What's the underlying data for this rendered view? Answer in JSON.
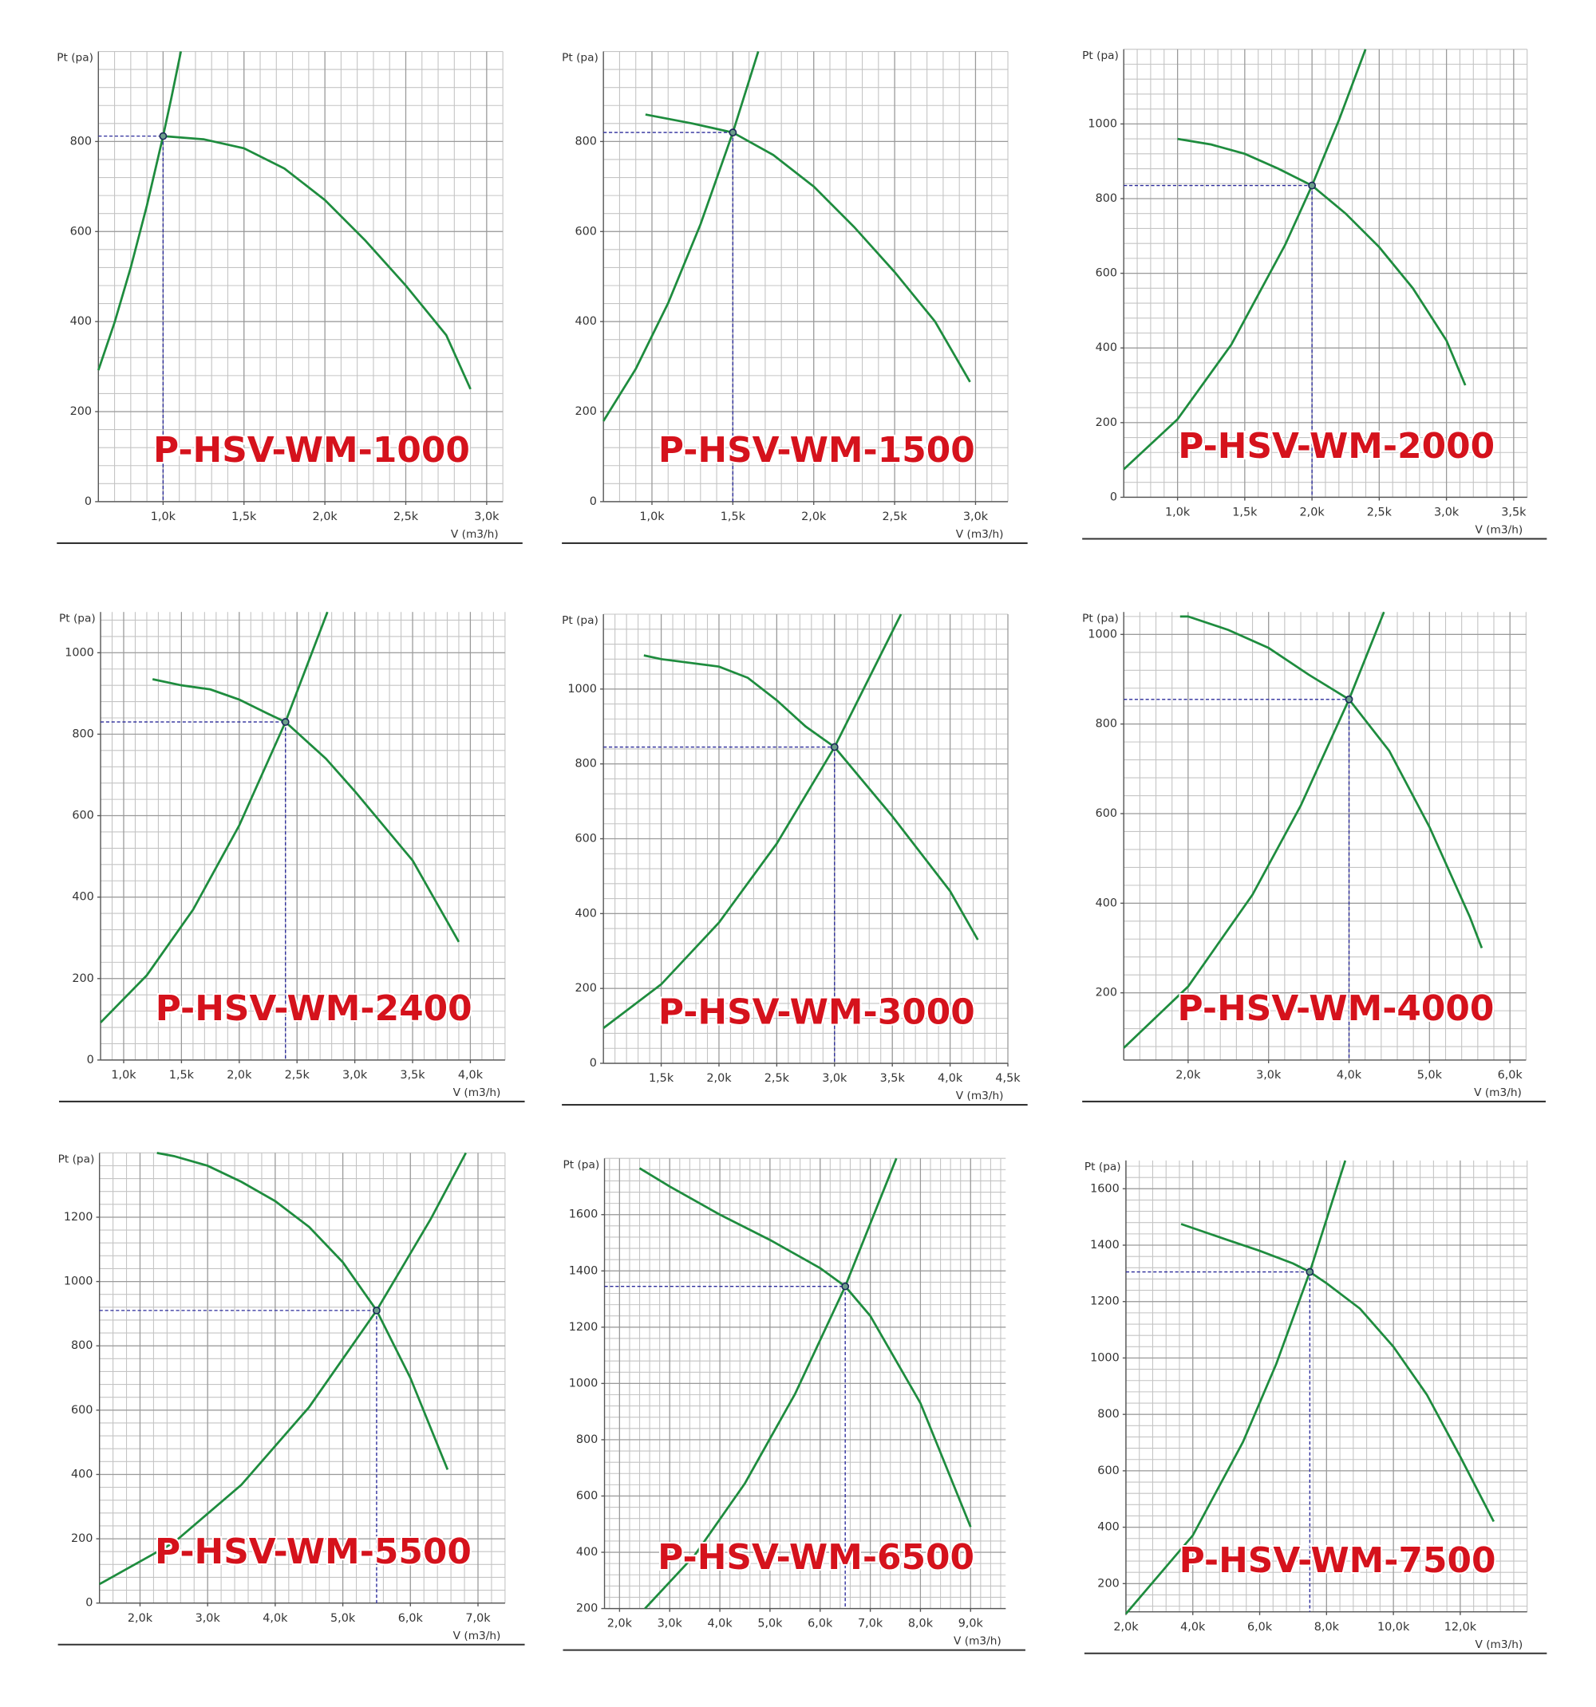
{
  "chart_data": [
    {
      "type": "line",
      "title": "P-HSV-WM-1000",
      "ylabel": "Pt (pa)",
      "xlabel": "V (m3/h)",
      "grid": true,
      "xlim": [
        600,
        3100
      ],
      "ylim": [
        0,
        1000
      ],
      "xticks": [
        {
          "value": 1000,
          "label": "1,0k"
        },
        {
          "value": 1500,
          "label": "1,5k"
        },
        {
          "value": 2000,
          "label": "2,0k"
        },
        {
          "value": 2500,
          "label": "2,5k"
        },
        {
          "value": 3000,
          "label": "3,0k"
        }
      ],
      "yticks": [
        0,
        200,
        400,
        600,
        800
      ],
      "series": [
        {
          "color": "#1e8c3e",
          "x": [
            1000,
            1250,
            1500,
            1750,
            2000,
            2250,
            2500,
            2750,
            2900
          ],
          "values": [
            812,
            805,
            785,
            740,
            670,
            580,
            480,
            370,
            250
          ]
        },
        {
          "color": "#1e8c3e",
          "x": [
            600,
            700,
            800,
            900,
            1000,
            1050,
            1110
          ],
          "values": [
            292,
            398,
            520,
            658,
            812,
            895,
            1000
          ]
        }
      ],
      "operating_point": {
        "x": 1000,
        "y": 812
      }
    },
    {
      "type": "line",
      "title": "P-HSV-WM-1500",
      "ylabel": "Pt (pa)",
      "xlabel": "V (m3/h)",
      "grid": true,
      "xlim": [
        700,
        3200
      ],
      "ylim": [
        0,
        1000
      ],
      "xticks": [
        {
          "value": 1000,
          "label": "1,0k"
        },
        {
          "value": 1500,
          "label": "1,5k"
        },
        {
          "value": 2000,
          "label": "2,0k"
        },
        {
          "value": 2500,
          "label": "2,5k"
        },
        {
          "value": 3000,
          "label": "3,0k"
        }
      ],
      "yticks": [
        0,
        200,
        400,
        600,
        800
      ],
      "series": [
        {
          "color": "#1e8c3e",
          "x": [
            960,
            1250,
            1500,
            1750,
            2000,
            2250,
            2500,
            2750,
            2966
          ],
          "values": [
            860,
            840,
            820,
            770,
            700,
            610,
            510,
            400,
            266
          ]
        },
        {
          "color": "#1e8c3e",
          "x": [
            700,
            900,
            1100,
            1300,
            1500,
            1657
          ],
          "values": [
            179,
            295,
            441,
            616,
            820,
            1000
          ]
        }
      ],
      "operating_point": {
        "x": 1500,
        "y": 820
      }
    },
    {
      "type": "line",
      "title": "P-HSV-WM-2000",
      "ylabel": "Pt (pa)",
      "xlabel": "V (m3/h)",
      "grid": true,
      "xlim": [
        600,
        3600
      ],
      "ylim": [
        0,
        1200
      ],
      "xticks": [
        {
          "value": 1000,
          "label": "1,0k"
        },
        {
          "value": 1500,
          "label": "1,5k"
        },
        {
          "value": 2000,
          "label": "2,0k"
        },
        {
          "value": 2500,
          "label": "2,5k"
        },
        {
          "value": 3000,
          "label": "3,0k"
        },
        {
          "value": 3500,
          "label": "3,5k"
        }
      ],
      "yticks": [
        0,
        200,
        400,
        600,
        800,
        1000
      ],
      "series": [
        {
          "color": "#1e8c3e",
          "x": [
            1000,
            1250,
            1500,
            1750,
            2000,
            2250,
            2500,
            2750,
            3000,
            3140
          ],
          "values": [
            960,
            945,
            920,
            880,
            835,
            760,
            670,
            560,
            420,
            300
          ]
        },
        {
          "color": "#1e8c3e",
          "x": [
            600,
            1000,
            1400,
            1800,
            2000,
            2200,
            2398
          ],
          "values": [
            75,
            209,
            409,
            676,
            835,
            1010,
            1200
          ]
        }
      ],
      "operating_point": {
        "x": 2000,
        "y": 835
      }
    },
    {
      "type": "line",
      "title": "P-HSV-WM-2400",
      "ylabel": "Pt (pa)",
      "xlabel": "V (m3/h)",
      "grid": true,
      "xlim": [
        800,
        4300
      ],
      "ylim": [
        0,
        1100
      ],
      "xticks": [
        {
          "value": 1000,
          "label": "1,0k"
        },
        {
          "value": 1500,
          "label": "1,5k"
        },
        {
          "value": 2000,
          "label": "2,0k"
        },
        {
          "value": 2500,
          "label": "2,5k"
        },
        {
          "value": 3000,
          "label": "3,0k"
        },
        {
          "value": 3500,
          "label": "3,5k"
        },
        {
          "value": 4000,
          "label": "4,0k"
        }
      ],
      "yticks": [
        0,
        200,
        400,
        600,
        800,
        1000
      ],
      "series": [
        {
          "color": "#1e8c3e",
          "x": [
            1250,
            1500,
            1750,
            2000,
            2250,
            2400,
            2750,
            3000,
            3500,
            3900
          ],
          "values": [
            935,
            920,
            910,
            885,
            850,
            830,
            740,
            660,
            490,
            290
          ]
        },
        {
          "color": "#1e8c3e",
          "x": [
            800,
            1200,
            1600,
            2000,
            2400,
            2763
          ],
          "values": [
            92,
            208,
            369,
            576,
            830,
            1100
          ]
        }
      ],
      "operating_point": {
        "x": 2400,
        "y": 830
      }
    },
    {
      "type": "line",
      "title": "P-HSV-WM-3000",
      "ylabel": "Pt (pa)",
      "xlabel": "V (m3/h)",
      "grid": true,
      "xlim": [
        1000,
        4500
      ],
      "ylim": [
        0,
        1200
      ],
      "xticks": [
        {
          "value": 1500,
          "label": "1,5k"
        },
        {
          "value": 2000,
          "label": "2,0k"
        },
        {
          "value": 2500,
          "label": "2,5k"
        },
        {
          "value": 3000,
          "label": "3,0k"
        },
        {
          "value": 3500,
          "label": "3,5k"
        },
        {
          "value": 4000,
          "label": "4,0k"
        },
        {
          "value": 4500,
          "label": "4,5k"
        }
      ],
      "yticks": [
        0,
        200,
        400,
        600,
        800,
        1000
      ],
      "series": [
        {
          "color": "#1e8c3e",
          "x": [
            1350,
            1500,
            2000,
            2250,
            2500,
            2750,
            3000,
            3500,
            4000,
            4240
          ],
          "values": [
            1090,
            1080,
            1060,
            1030,
            970,
            900,
            845,
            660,
            460,
            330
          ]
        },
        {
          "color": "#1e8c3e",
          "x": [
            1000,
            1500,
            2000,
            2500,
            3000,
            3575
          ],
          "values": [
            94,
            211,
            376,
            587,
            845,
            1200
          ]
        }
      ],
      "operating_point": {
        "x": 3000,
        "y": 845
      }
    },
    {
      "type": "line",
      "title": "P-HSV-WM-4000",
      "ylabel": "Pt (pa)",
      "xlabel": "V (m3/h)",
      "grid": true,
      "xlim": [
        1200,
        6200
      ],
      "ylim": [
        50,
        1050
      ],
      "xticks": [
        {
          "value": 2000,
          "label": "2,0k"
        },
        {
          "value": 3000,
          "label": "3,0k"
        },
        {
          "value": 4000,
          "label": "4,0k"
        },
        {
          "value": 5000,
          "label": "5,0k"
        },
        {
          "value": 6000,
          "label": "6,0k"
        }
      ],
      "yticks": [
        200,
        400,
        600,
        800,
        1000
      ],
      "series": [
        {
          "color": "#1e8c3e",
          "x": [
            1900,
            2000,
            2500,
            3000,
            3500,
            4000,
            4500,
            5000,
            5500,
            5650
          ],
          "values": [
            1040,
            1040,
            1010,
            970,
            910,
            855,
            740,
            570,
            370,
            300
          ]
        },
        {
          "color": "#1e8c3e",
          "x": [
            1200,
            2000,
            2800,
            3400,
            4000,
            4434
          ],
          "values": [
            77,
            214,
            419,
            618,
            855,
            1050
          ]
        }
      ],
      "operating_point": {
        "x": 4000,
        "y": 855
      }
    },
    {
      "type": "line",
      "title": "P-HSV-WM-5500",
      "ylabel": "Pt (pa)",
      "xlabel": "V (m3/h)",
      "grid": true,
      "xlim": [
        1400,
        7400
      ],
      "ylim": [
        0,
        1400
      ],
      "xticks": [
        {
          "value": 2000,
          "label": "2,0k"
        },
        {
          "value": 3000,
          "label": "3,0k"
        },
        {
          "value": 4000,
          "label": "4,0k"
        },
        {
          "value": 5000,
          "label": "5,0k"
        },
        {
          "value": 6000,
          "label": "6,0k"
        },
        {
          "value": 7000,
          "label": "7,0k"
        }
      ],
      "yticks": [
        0,
        200,
        400,
        600,
        800,
        1000,
        1200
      ],
      "series": [
        {
          "color": "#1e8c3e",
          "x": [
            2250,
            2500,
            3000,
            3500,
            4000,
            4500,
            5000,
            5500,
            6000,
            6550
          ],
          "values": [
            1400,
            1390,
            1360,
            1310,
            1250,
            1170,
            1060,
            910,
            700,
            415
          ]
        },
        {
          "color": "#1e8c3e",
          "x": [
            1400,
            2500,
            3500,
            4500,
            5500,
            6300,
            6820
          ],
          "values": [
            59,
            188,
            368,
            609,
            910,
            1194,
            1400
          ]
        }
      ],
      "operating_point": {
        "x": 5500,
        "y": 910
      }
    },
    {
      "type": "line",
      "title": "P-HSV-WM-6500",
      "ylabel": "Pt (pa)",
      "xlabel": "V (m3/h)",
      "grid": true,
      "xlim": [
        1700,
        9700
      ],
      "ylim": [
        200,
        1800
      ],
      "xticks": [
        {
          "value": 2000,
          "label": "2,0k"
        },
        {
          "value": 3000,
          "label": "3,0k"
        },
        {
          "value": 4000,
          "label": "4,0k"
        },
        {
          "value": 5000,
          "label": "5,0k"
        },
        {
          "value": 6000,
          "label": "6,0k"
        },
        {
          "value": 7000,
          "label": "7,0k"
        },
        {
          "value": 8000,
          "label": "8,0k"
        },
        {
          "value": 9000,
          "label": "9,0k"
        }
      ],
      "yticks": [
        200,
        400,
        600,
        800,
        1000,
        1200,
        1400,
        1600
      ],
      "series": [
        {
          "color": "#1e8c3e",
          "x": [
            2400,
            3000,
            4000,
            5000,
            6000,
            6500,
            7000,
            8000,
            9000
          ],
          "values": [
            1765,
            1700,
            1600,
            1510,
            1410,
            1345,
            1240,
            930,
            490
          ]
        },
        {
          "color": "#1e8c3e",
          "x": [
            2507,
            3500,
            4500,
            5500,
            6500,
            7520
          ],
          "values": [
            200,
            390,
            645,
            963,
            1345,
            1800
          ]
        }
      ],
      "operating_point": {
        "x": 6500,
        "y": 1345
      }
    },
    {
      "type": "line",
      "title": "P-HSV-WM-7500",
      "ylabel": "Pt (pa)",
      "xlabel": "V (m3/h)",
      "grid": true,
      "xlim": [
        2000,
        14000
      ],
      "ylim": [
        100,
        1700
      ],
      "xticks": [
        {
          "value": 2000,
          "label": "2,0k"
        },
        {
          "value": 4000,
          "label": "4,0k"
        },
        {
          "value": 6000,
          "label": "6,0k"
        },
        {
          "value": 8000,
          "label": "8,0k"
        },
        {
          "value": 10000,
          "label": "10,0k"
        },
        {
          "value": 12000,
          "label": "12,0k"
        }
      ],
      "yticks": [
        200,
        400,
        600,
        800,
        1000,
        1200,
        1400,
        1600
      ],
      "series": [
        {
          "color": "#1e8c3e",
          "x": [
            3650,
            5000,
            6000,
            7000,
            7500,
            8000,
            9000,
            10000,
            11000,
            12000,
            13000
          ],
          "values": [
            1475,
            1420,
            1380,
            1335,
            1305,
            1265,
            1175,
            1040,
            870,
            650,
            420
          ]
        },
        {
          "color": "#1e8c3e",
          "x": [
            2000,
            4000,
            5500,
            6500,
            7500,
            8560
          ],
          "values": [
            93,
            371,
            702,
            980,
            1305,
            1700
          ]
        }
      ],
      "operating_point": {
        "x": 7500,
        "y": 1305
      }
    }
  ]
}
